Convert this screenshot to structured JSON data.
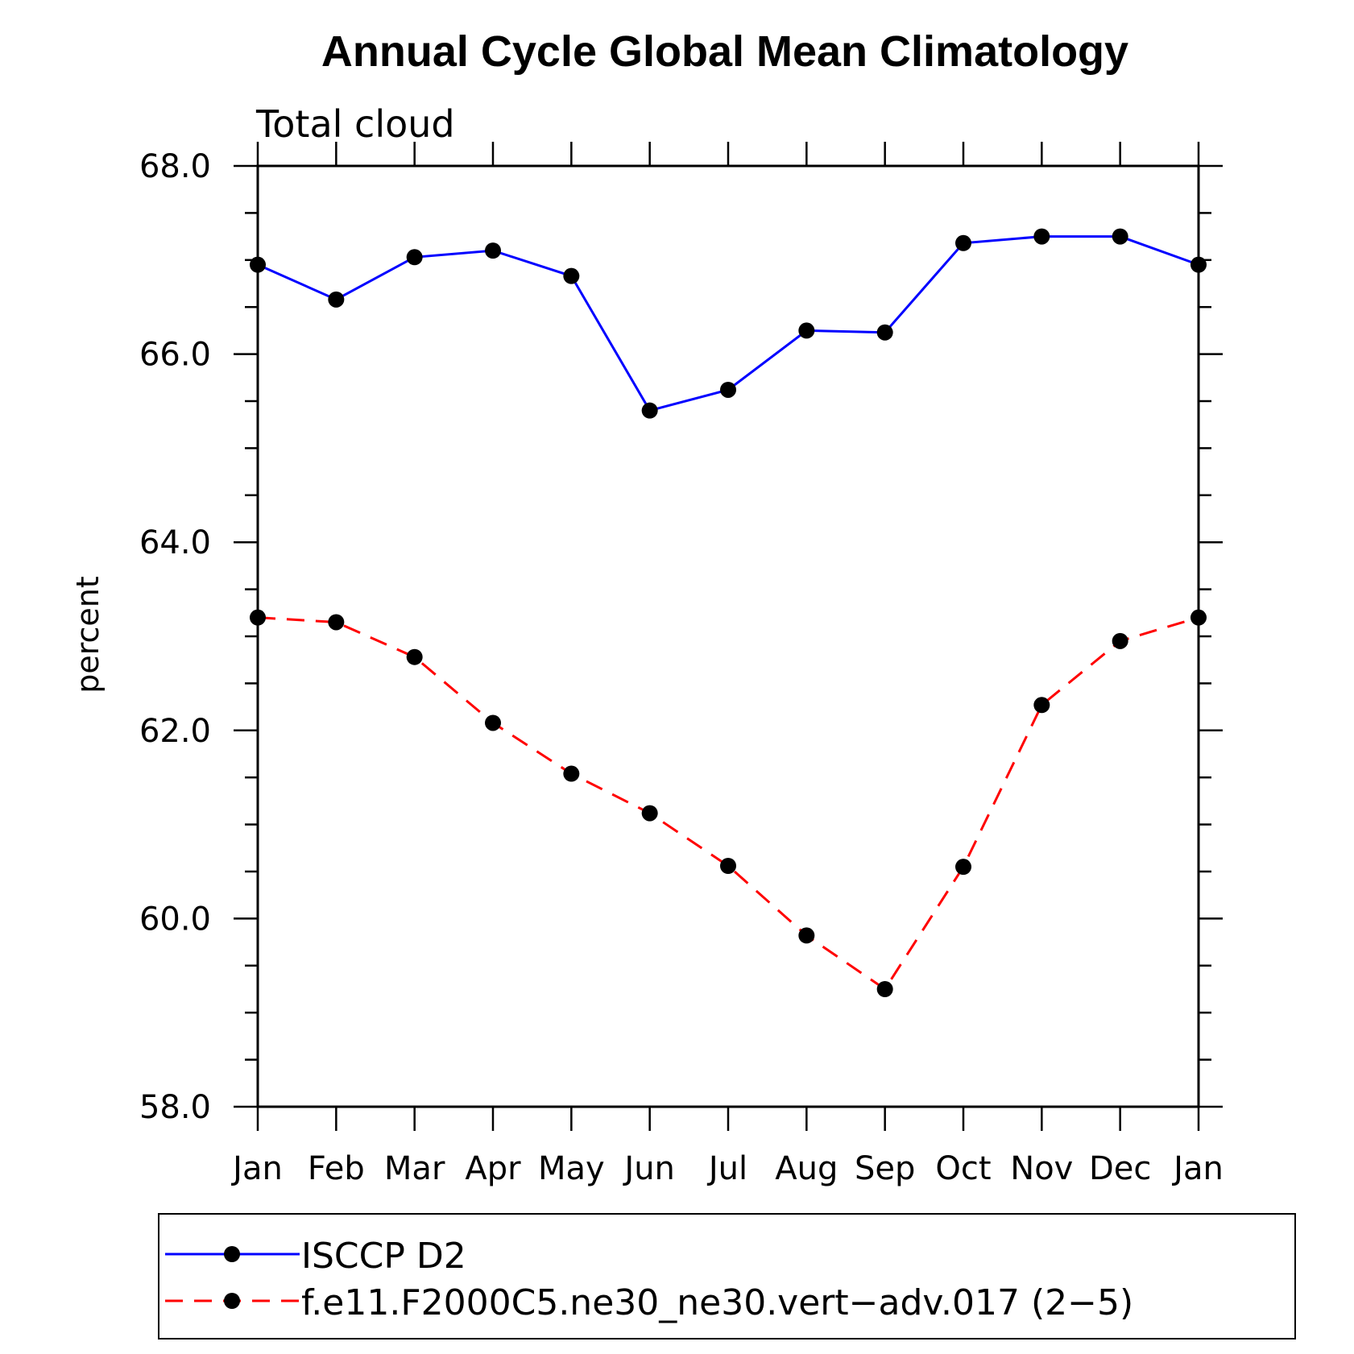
{
  "chart_data": {
    "type": "line",
    "title": "Annual Cycle Global Mean Climatology",
    "subtitle": "Total cloud",
    "xlabel": "",
    "ylabel": "percent",
    "ylim": [
      58.0,
      68.0
    ],
    "y_ticks": [
      "58.0",
      "60.0",
      "62.0",
      "64.0",
      "66.0",
      "68.0"
    ],
    "categories": [
      "Jan",
      "Feb",
      "Mar",
      "Apr",
      "May",
      "Jun",
      "Jul",
      "Aug",
      "Sep",
      "Oct",
      "Nov",
      "Dec",
      "Jan"
    ],
    "series": [
      {
        "name": "ISCCP D2",
        "color": "#0000ff",
        "dash": "solid",
        "marker": "filled-circle",
        "values": [
          66.95,
          66.58,
          67.03,
          67.1,
          66.83,
          65.4,
          65.62,
          66.25,
          66.23,
          67.18,
          67.25,
          67.25,
          66.95
        ]
      },
      {
        "name": "f.e11.F2000C5.ne30_ne30.vert−adv.017 (2−5)",
        "color": "#ff0000",
        "dash": "dashed",
        "marker": "filled-circle",
        "values": [
          63.2,
          63.15,
          62.78,
          62.08,
          61.54,
          61.12,
          60.56,
          59.82,
          59.25,
          60.55,
          62.27,
          62.95,
          63.2
        ]
      }
    ],
    "grid": false,
    "legend_position": "bottom"
  }
}
